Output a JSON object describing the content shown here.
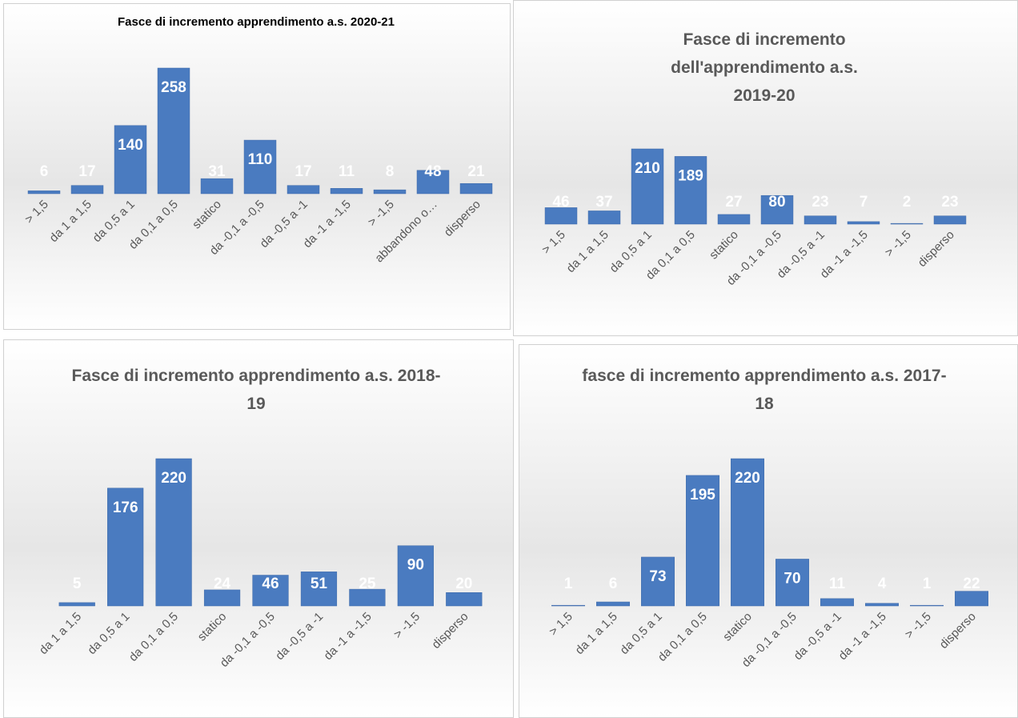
{
  "chart_data": [
    {
      "type": "bar",
      "title": "Fasce di incremento apprendimento a.s. 2020-21",
      "color": "#4a7bc0",
      "categories": [
        "> 1,5",
        "da 1 a 1,5",
        "da 0,5 a 1",
        "da 0,1 a 0,5",
        "statico",
        "da -0,1 a -0,5",
        "da -0,5 a -1",
        "da -1 a -1,5",
        "> -1,5",
        "abbandono o…",
        "disperso"
      ],
      "values": [
        6,
        17,
        140,
        258,
        31,
        110,
        17,
        11,
        8,
        48,
        21
      ]
    },
    {
      "type": "bar",
      "title": "Fasce di incremento dell'apprendimento a.s. 2019-20",
      "color": "#4a7bc0",
      "categories": [
        "> 1,5",
        "da 1 a 1,5",
        "da 0,5 a 1",
        "da 0,1 a 0,5",
        "statico",
        "da -0,1 a -0,5",
        "da -0,5 a -1",
        "da -1 a -1,5",
        "> -1,5",
        "disperso"
      ],
      "values": [
        46,
        37,
        210,
        189,
        27,
        80,
        23,
        7,
        2,
        23
      ]
    },
    {
      "type": "bar",
      "title": "Fasce di incremento apprendimento a.s. 2018-19",
      "color": "#4a7bc0",
      "categories": [
        "da 1 a 1,5",
        "da 0,5 a 1",
        "da 0,1 a 0,5",
        "statico",
        "da -0,1 a -0,5",
        "da -0,5 a -1",
        "da -1 a -1,5",
        "> -1,5",
        "disperso"
      ],
      "values": [
        5,
        176,
        220,
        24,
        46,
        51,
        25,
        90,
        20
      ]
    },
    {
      "type": "bar",
      "title": "fasce di incremento apprendimento a.s. 2017-18",
      "color": "#4a7bc0",
      "categories": [
        "> 1,5",
        "da 1 a 1,5",
        "da 0,5 a 1",
        "da 0,1 a 0,5",
        "statico",
        "da -0,1 a -0,5",
        "da -0,5 a -1",
        "da -1 a -1,5",
        "> -1,5",
        "disperso"
      ],
      "values": [
        1,
        6,
        73,
        195,
        220,
        70,
        11,
        4,
        1,
        22
      ]
    }
  ]
}
